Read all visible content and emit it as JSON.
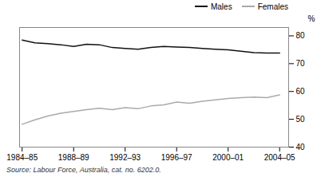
{
  "chart_data": {
    "type": "line",
    "ylabel": "%",
    "source": "Source: Labour Force, Australia, cat. no. 6202.0.",
    "x": [
      1984.5,
      1985.5,
      1986.5,
      1987.5,
      1988.5,
      1989.5,
      1990.5,
      1991.5,
      1992.5,
      1993.5,
      1994.5,
      1995.5,
      1996.5,
      1997.5,
      1998.5,
      1999.5,
      2000.5,
      2001.5,
      2002.5,
      2003.5,
      2004.5
    ],
    "series": [
      {
        "name": "Males",
        "color": "#111111",
        "values": [
          78.5,
          77.5,
          77.2,
          76.8,
          76.2,
          77.0,
          76.8,
          75.8,
          75.5,
          75.2,
          75.8,
          76.2,
          76.0,
          75.8,
          75.5,
          75.2,
          75.0,
          74.5,
          74.0,
          73.8,
          73.8
        ]
      },
      {
        "name": "Females",
        "color": "#aaaaaa",
        "values": [
          48.2,
          49.8,
          51.2,
          52.2,
          52.8,
          53.5,
          54.0,
          53.5,
          54.2,
          53.8,
          54.8,
          55.2,
          56.2,
          55.8,
          56.5,
          57.0,
          57.5,
          57.8,
          58.0,
          57.8,
          58.8
        ]
      }
    ],
    "xlim": [
      1984.3,
      2005.2
    ],
    "ylim": [
      40,
      83
    ],
    "xticks": [
      {
        "value": 1984.5,
        "label": "1984–85"
      },
      {
        "value": 1988.5,
        "label": "1988–89"
      },
      {
        "value": 1992.5,
        "label": "1992–93"
      },
      {
        "value": 1996.5,
        "label": "1996–97"
      },
      {
        "value": 2000.5,
        "label": "2000–01"
      },
      {
        "value": 2004.5,
        "label": "2004–05"
      }
    ],
    "yticks": [
      40,
      50,
      60,
      70,
      80
    ],
    "legend": "upper right"
  }
}
